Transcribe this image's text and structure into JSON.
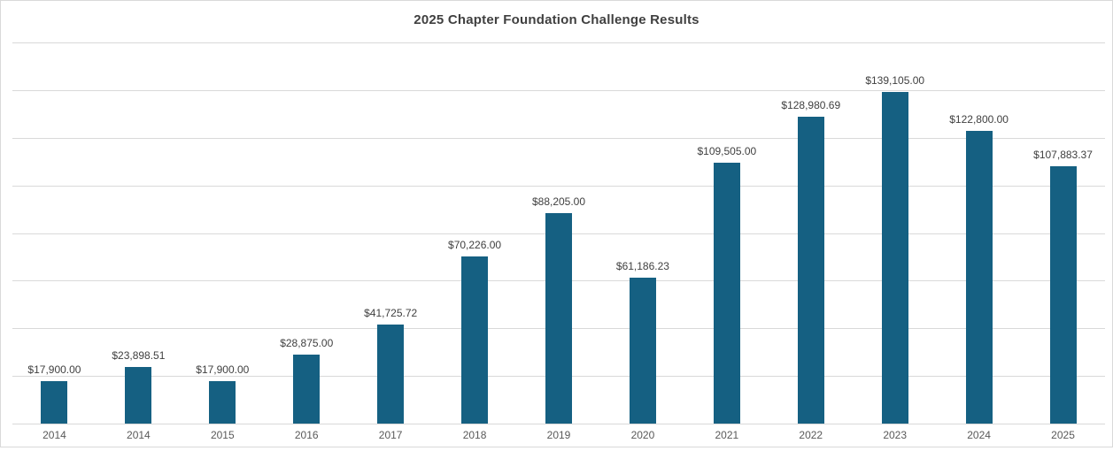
{
  "chart_data": {
    "type": "bar",
    "title": "2025 Chapter Foundation Challenge Results",
    "categories": [
      "2014",
      "2014",
      "2015",
      "2016",
      "2017",
      "2018",
      "2019",
      "2020",
      "2021",
      "2022",
      "2023",
      "2024",
      "2025"
    ],
    "values": [
      17900.0,
      23898.51,
      17900.0,
      28875.0,
      41725.72,
      70226.0,
      88205.0,
      61186.23,
      109505.0,
      128980.69,
      139105.0,
      122800.0,
      107883.37
    ],
    "labels": [
      "$17,900.00",
      "$23,898.51",
      "$17,900.00",
      "$28,875.00",
      "$41,725.72",
      "$70,226.00",
      "$88,205.00",
      "$61,186.23",
      "$109,505.00",
      "$128,980.69",
      "$139,105.00",
      "$122,800.00",
      "$107,883.37"
    ],
    "xlabel": "",
    "ylabel": "",
    "ylim": [
      0,
      160000
    ],
    "gridline_step": 20000,
    "grid": true,
    "legend_position": "none",
    "bar_color": "#156082",
    "gridline_color": "#d9d9d9",
    "title_color": "#404040",
    "data_label_color": "#404040",
    "axis_label_color": "#595959"
  }
}
